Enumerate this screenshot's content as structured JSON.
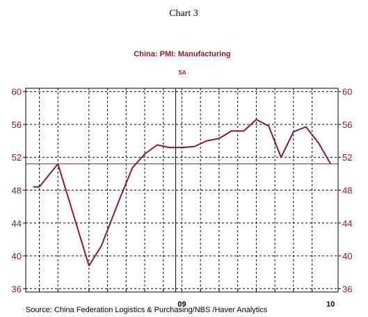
{
  "chart_data": {
    "type": "line",
    "header": "Chart 3",
    "title": "China: PMI: Manufacturing",
    "subtitle": "SA",
    "source": "Source:  China Federation Logistics & Purchasing/NBS /Haver Analytics",
    "y_ticks": [
      36,
      40,
      44,
      48,
      52,
      56,
      60
    ],
    "y_tick_labels": [
      "36",
      "40",
      "44",
      "48",
      "52",
      "56",
      "60"
    ],
    "ylim": [
      35.6,
      60.4
    ],
    "x_tick_labels": [
      {
        "label": "09",
        "month_index": 12
      },
      {
        "label": "10",
        "month_index": 24
      }
    ],
    "year_boundary_month_index": 11.5,
    "reference_line": 51.2,
    "series": [
      {
        "color": "#8b1a2b",
        "x": [
          0,
          0.5,
          2,
          4.5,
          5.5,
          7,
          8,
          9,
          10,
          11,
          12,
          13,
          14,
          15,
          16,
          17,
          18,
          19,
          20,
          21,
          22,
          23,
          24
        ],
        "values": [
          48.4,
          48.4,
          51.2,
          38.8,
          41.2,
          47.0,
          50.7,
          52.4,
          53.5,
          53.2,
          53.2,
          53.3,
          54.0,
          54.3,
          55.2,
          55.2,
          56.6,
          55.8,
          52.0,
          55.1,
          55.7,
          53.8,
          51.2
        ]
      }
    ],
    "xlim": [
      -0.6,
      24.6
    ],
    "vertical_gridlines_month_index": [
      0.5,
      2,
      4.5,
      6,
      7.5,
      9,
      10.5,
      12,
      13.5,
      15,
      16.5,
      18,
      19.5,
      21,
      22.5
    ],
    "grid": true
  }
}
